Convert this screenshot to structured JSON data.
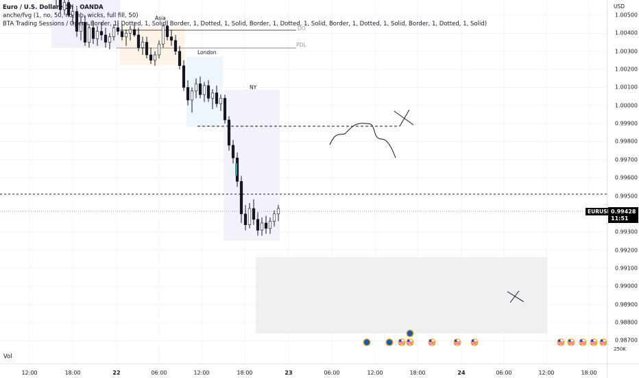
{
  "legend": {
    "symbol_line": "Euro / U.S. Dollar · 1h · OANDA",
    "indicator1": "anche/fvg (1, no, 50, no, nb, wicks, full fill, 50)",
    "indicator2": "BTA Trading Sessions / Opens Border, 1, Dotted, 1, Solid, Border, 1, Dotted, 1, Solid, Border, 1, Dotted, 1, Solid, Border, 1, Dotted, 1, Solid, Border, 1, Dotted, 1, Solid)"
  },
  "sessions": {
    "asia": "Asia",
    "london": "London",
    "ny": "NY",
    "do": "DO",
    "pdl": "PDL"
  },
  "price_axis": {
    "currency": "USD",
    "ticks": [
      "1.00500",
      "1.00400",
      "1.00300",
      "1.00200",
      "1.00100",
      "1.00000",
      "0.99900",
      "0.99800",
      "0.99700",
      "0.99600",
      "0.99500",
      "0.99400",
      "0.99300",
      "0.99200",
      "0.99100",
      "0.99000",
      "0.98900",
      "0.98800",
      "0.98700"
    ]
  },
  "symbol_tag": "EURUSD",
  "current_price": "0.99428",
  "countdown": "11:51",
  "volume": {
    "label": "Vol",
    "tick": "250K"
  },
  "time_axis": {
    "ticks": [
      {
        "label": "12:00",
        "bold": false
      },
      {
        "label": "18:00",
        "bold": false
      },
      {
        "label": "22",
        "bold": true
      },
      {
        "label": "06:00",
        "bold": false
      },
      {
        "label": "12:00",
        "bold": false
      },
      {
        "label": "18:00",
        "bold": false
      },
      {
        "label": "23",
        "bold": true
      },
      {
        "label": "06:00",
        "bold": false
      },
      {
        "label": "12:00",
        "bold": false
      },
      {
        "label": "18:00",
        "bold": false
      },
      {
        "label": "24",
        "bold": true
      },
      {
        "label": "06:00",
        "bold": false
      },
      {
        "label": "12:00",
        "bold": false
      },
      {
        "label": "18:00",
        "bold": false
      }
    ]
  },
  "colors": {
    "up": "#26a69a",
    "down": "#131722",
    "asia_box": "#f3e5f5",
    "london_box": "#e3f2fd",
    "ny_box": "#ede7f6",
    "projection_box": "#eceff1",
    "event_blue": "#1e5aa8",
    "event_us": "#e8484f"
  },
  "event_icons": [
    "eu-flag-icon",
    "eu-flag-icon",
    "us-flag-icon",
    "us-flag-icon",
    "us-flag-icon",
    "us-flag-icon",
    "us-flag-icon",
    "us-flag-icon",
    "us-flag-icon",
    "us-flag-icon"
  ]
}
